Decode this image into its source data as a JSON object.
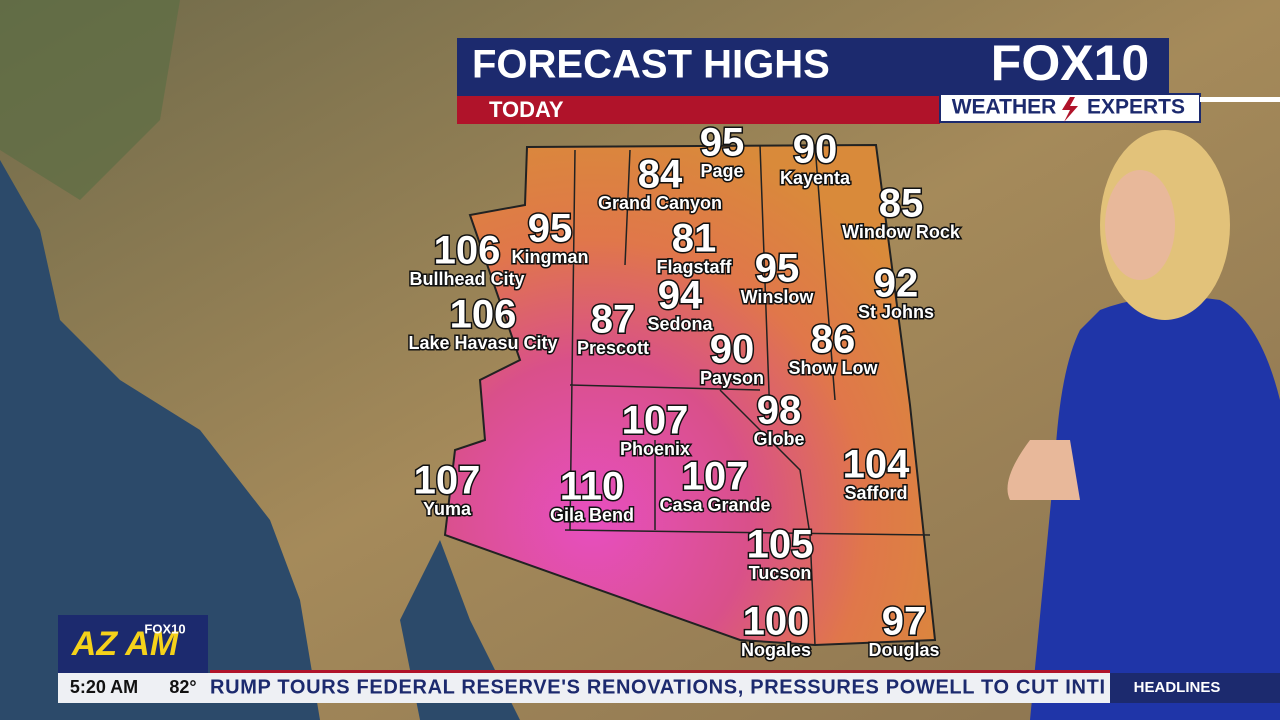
{
  "header": {
    "title": "FORECAST HIGHS",
    "subtitle": "TODAY",
    "logo": "FOX10",
    "badge_left": "WEATHER",
    "badge_right": "EXPERTS"
  },
  "cities": [
    {
      "name": "Page",
      "temp": 95
    },
    {
      "name": "Grand Canyon",
      "temp": 84
    },
    {
      "name": "Kayenta",
      "temp": 90
    },
    {
      "name": "Window Rock",
      "temp": 85
    },
    {
      "name": "Kingman",
      "temp": 95
    },
    {
      "name": "Bullhead City",
      "temp": 106
    },
    {
      "name": "Flagstaff",
      "temp": 81
    },
    {
      "name": "Winslow",
      "temp": 95
    },
    {
      "name": "St Johns",
      "temp": 92
    },
    {
      "name": "Lake Havasu City",
      "temp": 106
    },
    {
      "name": "Prescott",
      "temp": 87
    },
    {
      "name": "Sedona",
      "temp": 94
    },
    {
      "name": "Payson",
      "temp": 90
    },
    {
      "name": "Show Low",
      "temp": 86
    },
    {
      "name": "Phoenix",
      "temp": 107
    },
    {
      "name": "Globe",
      "temp": 98
    },
    {
      "name": "Yuma",
      "temp": 107
    },
    {
      "name": "Gila Bend",
      "temp": 110
    },
    {
      "name": "Casa Grande",
      "temp": 107
    },
    {
      "name": "Safford",
      "temp": 104
    },
    {
      "name": "Tucson",
      "temp": 105
    },
    {
      "name": "Nogales",
      "temp": 100
    },
    {
      "name": "Douglas",
      "temp": 97
    }
  ],
  "show_logo": {
    "big": "AZ AM",
    "small": "FOX10"
  },
  "ticker": {
    "time": "5:20 AM",
    "temperature": "82°",
    "headline": "RUMP TOURS FEDERAL RESERVE'S RENOVATIONS, PRESSURES POWELL TO CUT INTI",
    "section": "HEADLINES"
  }
}
